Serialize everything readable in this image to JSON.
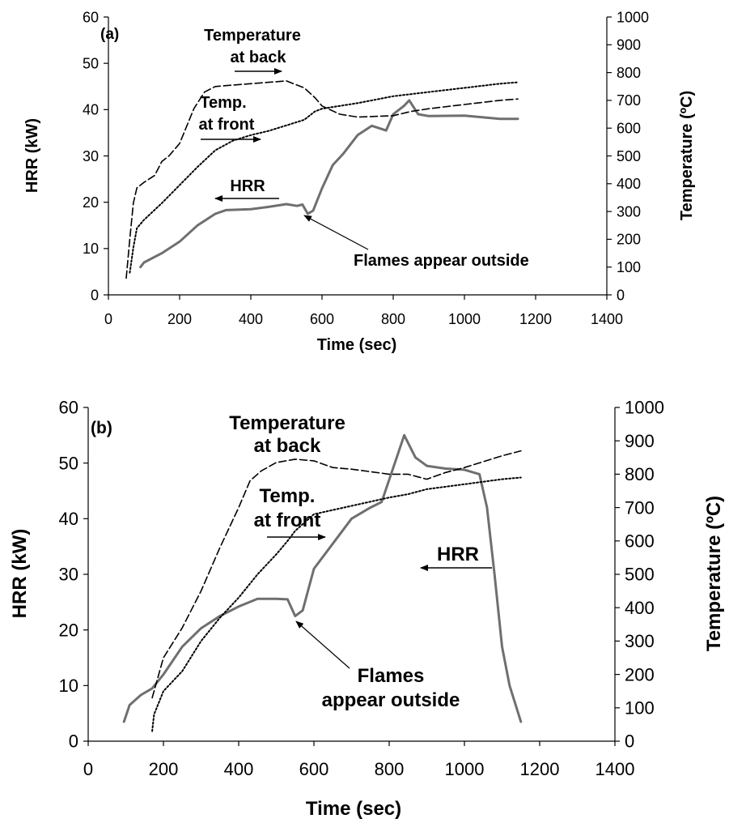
{
  "chart_data": [
    {
      "type": "line",
      "panel_label": "(a)",
      "xlabel": "Time (sec)",
      "ylabel": "HRR (kW)",
      "y2label": "Temperature (ºC)",
      "xlim": [
        0,
        1400
      ],
      "ylim": [
        0,
        60
      ],
      "y2lim": [
        0,
        1000
      ],
      "xticks": [
        "0",
        "200",
        "400",
        "600",
        "800",
        "1000",
        "1200",
        "1400"
      ],
      "yticks": [
        "0",
        "10",
        "20",
        "30",
        "40",
        "50",
        "60"
      ],
      "y2ticks": [
        "0",
        "100",
        "200",
        "300",
        "400",
        "500",
        "600",
        "700",
        "800",
        "900",
        "1000"
      ],
      "grid": false,
      "series": [
        {
          "id": "hrr",
          "axis": "left",
          "style": "solid",
          "points": [
            [
              90,
              6
            ],
            [
              100,
              7
            ],
            [
              150,
              9
            ],
            [
              200,
              11.5
            ],
            [
              250,
              15
            ],
            [
              300,
              17.5
            ],
            [
              330,
              18.3
            ],
            [
              400,
              18.5
            ],
            [
              450,
              19
            ],
            [
              500,
              19.6
            ],
            [
              530,
              19.2
            ],
            [
              545,
              19.5
            ],
            [
              560,
              17.5
            ],
            [
              575,
              18.2
            ],
            [
              600,
              23
            ],
            [
              630,
              28
            ],
            [
              660,
              30.5
            ],
            [
              700,
              34.5
            ],
            [
              740,
              36.5
            ],
            [
              780,
              35.5
            ],
            [
              800,
              39
            ],
            [
              830,
              40.8
            ],
            [
              845,
              42
            ],
            [
              870,
              39
            ],
            [
              900,
              38.6
            ],
            [
              1000,
              38.7
            ],
            [
              1100,
              38
            ],
            [
              1150,
              38
            ]
          ]
        },
        {
          "id": "temp_back",
          "axis": "right",
          "style": "dashed",
          "points": [
            [
              50,
              60
            ],
            [
              60,
              200
            ],
            [
              70,
              330
            ],
            [
              80,
              385
            ],
            [
              100,
              405
            ],
            [
              130,
              430
            ],
            [
              150,
              480
            ],
            [
              170,
              500
            ],
            [
              200,
              545
            ],
            [
              240,
              670
            ],
            [
              270,
              730
            ],
            [
              300,
              750
            ],
            [
              350,
              755
            ],
            [
              400,
              760
            ],
            [
              450,
              765
            ],
            [
              500,
              770
            ],
            [
              550,
              745
            ],
            [
              580,
              710
            ],
            [
              600,
              680
            ],
            [
              650,
              650
            ],
            [
              700,
              640
            ],
            [
              800,
              645
            ],
            [
              850,
              660
            ],
            [
              900,
              670
            ],
            [
              1000,
              685
            ],
            [
              1100,
              700
            ],
            [
              1150,
              705
            ]
          ]
        },
        {
          "id": "temp_front",
          "axis": "right",
          "style": "dotted",
          "points": [
            [
              60,
              80
            ],
            [
              70,
              170
            ],
            [
              80,
              240
            ],
            [
              100,
              270
            ],
            [
              150,
              330
            ],
            [
              200,
              395
            ],
            [
              250,
              460
            ],
            [
              300,
              520
            ],
            [
              350,
              555
            ],
            [
              400,
              575
            ],
            [
              450,
              590
            ],
            [
              500,
              610
            ],
            [
              550,
              630
            ],
            [
              580,
              660
            ],
            [
              600,
              670
            ],
            [
              700,
              690
            ],
            [
              800,
              715
            ],
            [
              900,
              730
            ],
            [
              1000,
              745
            ],
            [
              1100,
              760
            ],
            [
              1150,
              765
            ]
          ]
        }
      ],
      "annotations": [
        "Temperature at back",
        "Temp. at front",
        "HRR",
        "Flames appear outside"
      ]
    },
    {
      "type": "line",
      "panel_label": "(b)",
      "xlabel": "Time (sec)",
      "ylabel": "HRR (kW)",
      "y2label": "Temperature (ºC)",
      "xlim": [
        0,
        1400
      ],
      "ylim": [
        0,
        60
      ],
      "y2lim": [
        0,
        1000
      ],
      "xticks": [
        "0",
        "200",
        "400",
        "600",
        "800",
        "1000",
        "1200",
        "1400"
      ],
      "yticks": [
        "0",
        "10",
        "20",
        "30",
        "40",
        "50",
        "60"
      ],
      "y2ticks": [
        "0",
        "100",
        "200",
        "300",
        "400",
        "500",
        "600",
        "700",
        "800",
        "900",
        "1000"
      ],
      "grid": false,
      "series": [
        {
          "id": "hrr",
          "axis": "left",
          "style": "solid",
          "points": [
            [
              95,
              3.5
            ],
            [
              110,
              6.5
            ],
            [
              140,
              8.3
            ],
            [
              170,
              9.5
            ],
            [
              200,
              12
            ],
            [
              250,
              17
            ],
            [
              300,
              20.3
            ],
            [
              350,
              22.5
            ],
            [
              400,
              24.2
            ],
            [
              450,
              25.6
            ],
            [
              500,
              25.6
            ],
            [
              530,
              25.5
            ],
            [
              550,
              22.5
            ],
            [
              570,
              23.5
            ],
            [
              600,
              31
            ],
            [
              650,
              35.5
            ],
            [
              700,
              40
            ],
            [
              750,
              42
            ],
            [
              780,
              43
            ],
            [
              820,
              51
            ],
            [
              840,
              55
            ],
            [
              870,
              51
            ],
            [
              900,
              49.5
            ],
            [
              950,
              49
            ],
            [
              1000,
              48.8
            ],
            [
              1040,
              48
            ],
            [
              1060,
              42
            ],
            [
              1080,
              30
            ],
            [
              1100,
              17
            ],
            [
              1120,
              10
            ],
            [
              1150,
              3.5
            ]
          ]
        },
        {
          "id": "temp_back",
          "axis": "right",
          "style": "dashed",
          "points": [
            [
              170,
              130
            ],
            [
              200,
              250
            ],
            [
              250,
              340
            ],
            [
              300,
              450
            ],
            [
              350,
              580
            ],
            [
              400,
              700
            ],
            [
              430,
              780
            ],
            [
              460,
              810
            ],
            [
              500,
              835
            ],
            [
              550,
              845
            ],
            [
              600,
              840
            ],
            [
              650,
              820
            ],
            [
              700,
              815
            ],
            [
              800,
              800
            ],
            [
              850,
              800
            ],
            [
              900,
              785
            ],
            [
              950,
              805
            ],
            [
              1000,
              820
            ],
            [
              1100,
              855
            ],
            [
              1150,
              870
            ]
          ]
        },
        {
          "id": "temp_front",
          "axis": "right",
          "style": "dotted",
          "points": [
            [
              170,
              30
            ],
            [
              175,
              80
            ],
            [
              200,
              150
            ],
            [
              250,
              210
            ],
            [
              300,
              300
            ],
            [
              350,
              370
            ],
            [
              400,
              430
            ],
            [
              450,
              500
            ],
            [
              500,
              560
            ],
            [
              530,
              600
            ],
            [
              550,
              630
            ],
            [
              600,
              680
            ],
            [
              700,
              705
            ],
            [
              800,
              730
            ],
            [
              850,
              740
            ],
            [
              900,
              755
            ],
            [
              1000,
              770
            ],
            [
              1100,
              785
            ],
            [
              1150,
              790
            ]
          ]
        }
      ],
      "annotations": [
        "Temperature at back",
        "Temp. at front",
        "HRR",
        "Flames appear outside"
      ]
    }
  ],
  "panels": [
    {
      "label": "(a)",
      "xlabel": "Time (sec)",
      "ylabel": "HRR (kW)",
      "y2label": "Temperature (ºC)",
      "ann_back_1": "Temperature",
      "ann_back_2": "at back",
      "ann_front_1": "Temp.",
      "ann_front_2": "at front",
      "ann_hrr": "HRR",
      "ann_flames_1": "Flames appear outside",
      "ann_flames_2": ""
    },
    {
      "label": "(b)",
      "xlabel": "Time (sec)",
      "ylabel": "HRR (kW)",
      "y2label": "Temperature (ºC)",
      "ann_back_1": "Temperature",
      "ann_back_2": "at back",
      "ann_front_1": "Temp.",
      "ann_front_2": "at front",
      "ann_hrr": "HRR",
      "ann_flames_1": "Flames",
      "ann_flames_2": "appear outside"
    }
  ]
}
